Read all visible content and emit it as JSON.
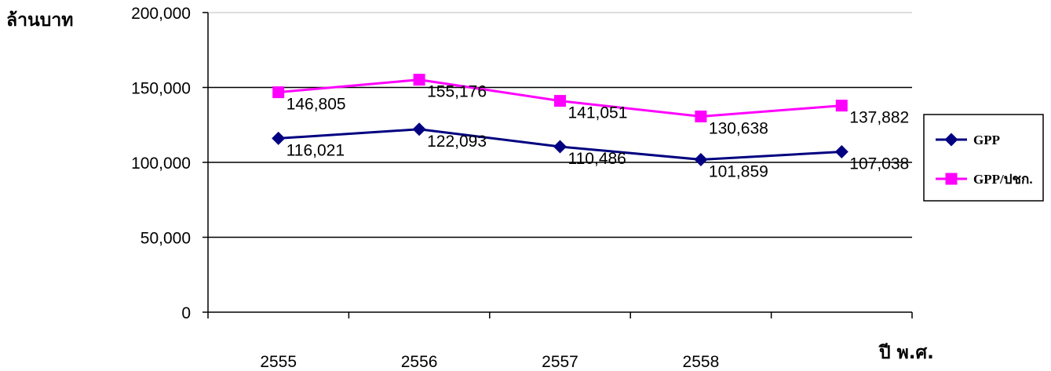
{
  "chart_data": {
    "type": "line",
    "ylabel": "ล้านบาท",
    "xlabel": "ปี พ.ศ.",
    "categories": [
      "2555",
      "2556",
      "2557",
      "2558",
      ""
    ],
    "ylim": [
      0,
      200000
    ],
    "yticks": [
      "0",
      "50,000",
      "100,000",
      "150,000",
      "200,000"
    ],
    "grid": true,
    "legend_position": "right",
    "series": [
      {
        "name": "GPP",
        "values": [
          116021,
          122093,
          110486,
          101859,
          107038
        ],
        "labels": [
          "116,021",
          "122,093",
          "110,486",
          "101,859",
          "107,038"
        ],
        "color": "#000080",
        "marker": "diamond"
      },
      {
        "name": "GPP/ปชก.",
        "values": [
          146805,
          155176,
          141051,
          130638,
          137882
        ],
        "labels": [
          "146,805",
          "155,176",
          "141,051",
          "130,638",
          "137,882"
        ],
        "color": "#ff00ff",
        "marker": "square"
      }
    ]
  }
}
